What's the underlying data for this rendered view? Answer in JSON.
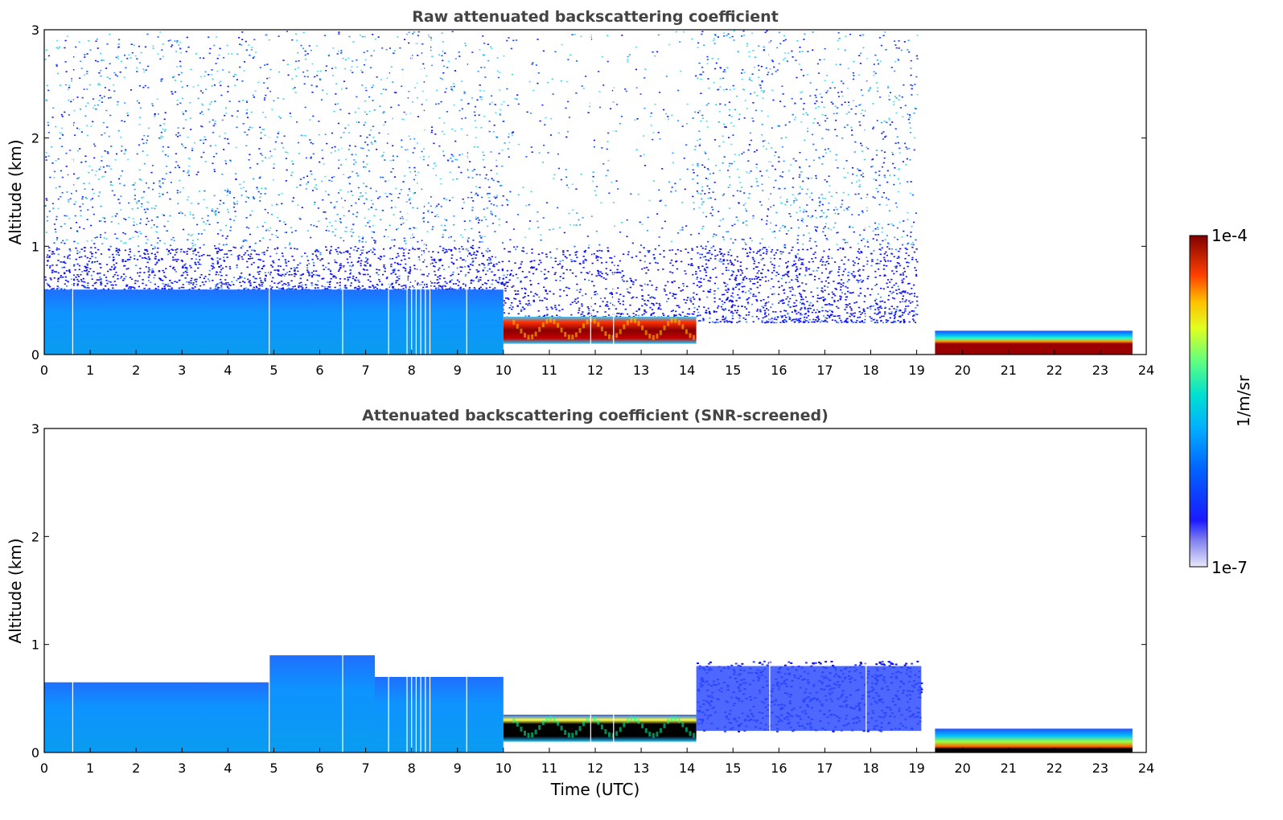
{
  "chart_data": [
    {
      "type": "heatmap",
      "title": "Raw attenuated backscattering coefficient",
      "xlabel": "",
      "ylabel": "Altitude (km)",
      "xlim": [
        0,
        24
      ],
      "ylim": [
        0,
        3
      ],
      "xticks": [
        "0",
        "1",
        "2",
        "3",
        "4",
        "5",
        "6",
        "7",
        "8",
        "9",
        "10",
        "11",
        "12",
        "13",
        "14",
        "15",
        "16",
        "17",
        "18",
        "19",
        "20",
        "21",
        "22",
        "23",
        "24"
      ],
      "yticks": [
        "0",
        "1",
        "2",
        "3"
      ],
      "grid": false,
      "layers": [
        {
          "x": [
            0,
            10
          ],
          "y": [
            0,
            0.6
          ],
          "level": 0.55
        },
        {
          "x": [
            10,
            14.2
          ],
          "y": [
            0.1,
            0.35
          ],
          "level": 0.97
        },
        {
          "x": [
            19.4,
            23.7
          ],
          "y": [
            0,
            0.1
          ],
          "level": 0.98
        },
        {
          "x": [
            19.4,
            23.7
          ],
          "y": [
            0.1,
            0.22
          ],
          "level": 0.3
        }
      ]
    },
    {
      "type": "heatmap",
      "title": "Attenuated backscattering coefficient (SNR-screened)",
      "xlabel": "Time (UTC)",
      "ylabel": "Altitude (km)",
      "xlim": [
        0,
        24
      ],
      "ylim": [
        0,
        3
      ],
      "xticks": [
        "0",
        "1",
        "2",
        "3",
        "4",
        "5",
        "6",
        "7",
        "8",
        "9",
        "10",
        "11",
        "12",
        "13",
        "14",
        "15",
        "16",
        "17",
        "18",
        "19",
        "20",
        "21",
        "22",
        "23",
        "24"
      ],
      "yticks": [
        "0",
        "1",
        "2",
        "3"
      ],
      "grid": false,
      "layers": [
        {
          "x": [
            0,
            4.9
          ],
          "y": [
            0,
            0.65
          ],
          "level": 0.55
        },
        {
          "x": [
            4.9,
            7.2
          ],
          "y": [
            0,
            0.9
          ],
          "level": 0.55
        },
        {
          "x": [
            7.2,
            10
          ],
          "y": [
            0,
            0.7
          ],
          "level": 0.55
        },
        {
          "x": [
            10,
            14.2
          ],
          "y": [
            0.1,
            0.35
          ],
          "level": 0.9
        },
        {
          "x": [
            14.2,
            19.1
          ],
          "y": [
            0.2,
            0.8
          ],
          "level": 0.3
        },
        {
          "x": [
            19.4,
            23.7
          ],
          "y": [
            0,
            0.22
          ],
          "level": 0.7
        }
      ]
    }
  ],
  "colorbar": {
    "max_label": "1e-4",
    "min_label": "1e-7",
    "units": "1/m/sr"
  }
}
